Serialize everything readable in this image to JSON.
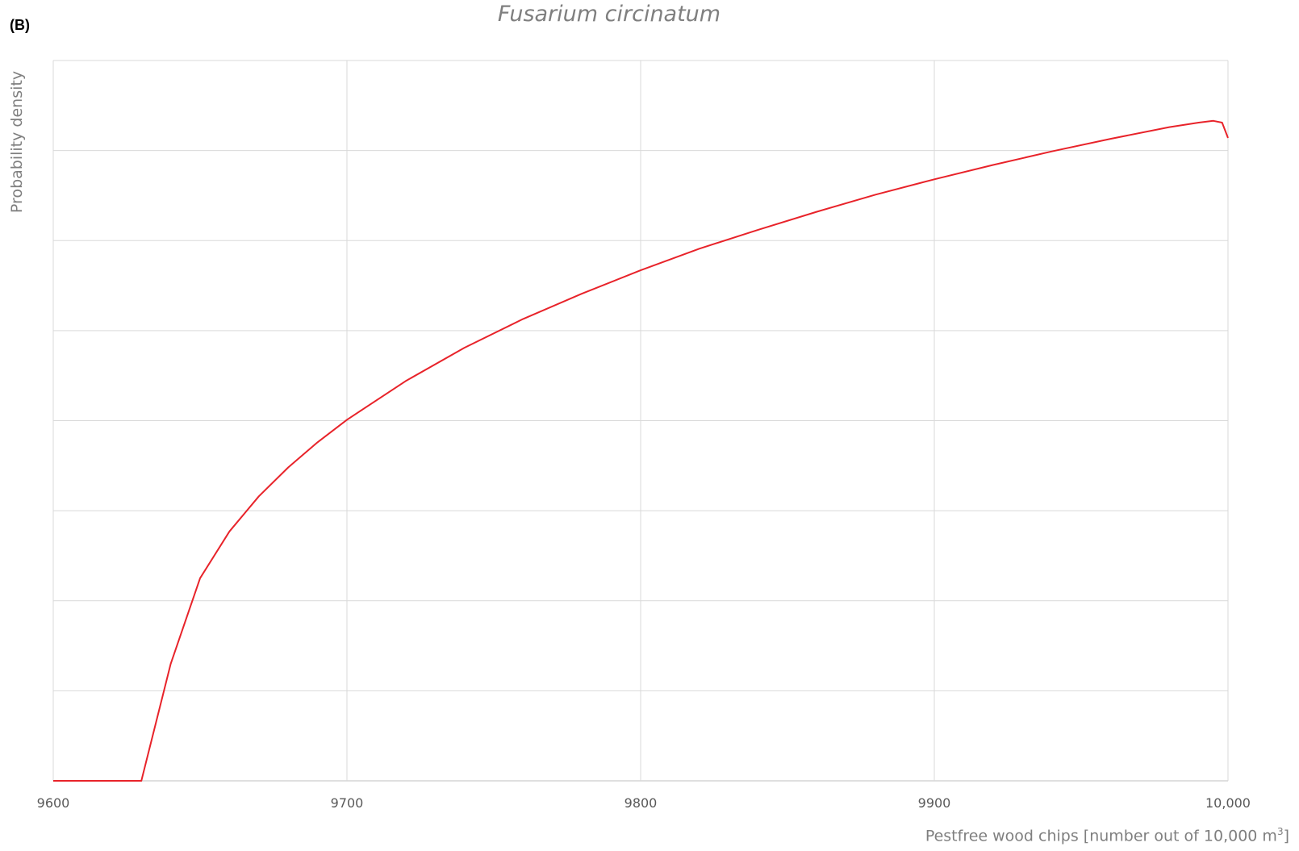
{
  "panel_label": "(B)",
  "chart_data": {
    "type": "line",
    "title": "Fusarium circinatum",
    "xlabel": "Pestfree wood chips [number out of 10,000 m",
    "xlabel_sup": "3",
    "xlabel_end": "]",
    "ylabel": "Probability density",
    "xlim": [
      9600,
      10000
    ],
    "ylim": [
      0,
      8
    ],
    "x_ticks": [
      9600,
      9700,
      9800,
      9900,
      10000
    ],
    "x_tick_labels": [
      "9600",
      "9700",
      "9800",
      "9900",
      "10,000"
    ],
    "y_gridlines": [
      0,
      1,
      2,
      3,
      4,
      5,
      6,
      7,
      8
    ],
    "grid": true,
    "series": [
      {
        "color": "#e8232a",
        "x": [
          9600,
          9630,
          9640,
          9650,
          9660,
          9670,
          9680,
          9690,
          9700,
          9720,
          9740,
          9760,
          9780,
          9800,
          9820,
          9840,
          9860,
          9880,
          9900,
          9920,
          9940,
          9960,
          9980,
          9990,
          9995,
          9998,
          10000
        ],
        "y": [
          0,
          0,
          1.3,
          2.25,
          2.77,
          3.16,
          3.48,
          3.76,
          4.01,
          4.44,
          4.81,
          5.13,
          5.41,
          5.67,
          5.91,
          6.12,
          6.32,
          6.51,
          6.68,
          6.84,
          6.99,
          7.13,
          7.26,
          7.31,
          7.33,
          7.31,
          7.14
        ]
      }
    ]
  }
}
